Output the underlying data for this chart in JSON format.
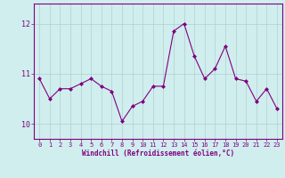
{
  "x": [
    0,
    1,
    2,
    3,
    4,
    5,
    6,
    7,
    8,
    9,
    10,
    11,
    12,
    13,
    14,
    15,
    16,
    17,
    18,
    19,
    20,
    21,
    22,
    23
  ],
  "y": [
    10.9,
    10.5,
    10.7,
    10.7,
    10.8,
    10.9,
    10.75,
    10.65,
    10.05,
    10.35,
    10.45,
    10.75,
    10.75,
    11.85,
    12.0,
    11.35,
    10.9,
    11.1,
    11.55,
    10.9,
    10.85,
    10.45,
    10.7,
    10.3
  ],
  "line_color": "#800080",
  "marker": "D",
  "marker_size": 2,
  "bg_color": "#d0eeee",
  "grid_color": "#b0d0d0",
  "xlabel": "Windchill (Refroidissement éolien,°C)",
  "xlabel_color": "#800080",
  "tick_color": "#800080",
  "spine_color": "#800080",
  "ylim": [
    9.7,
    12.4
  ],
  "xlim": [
    -0.5,
    23.5
  ],
  "yticks": [
    10,
    11,
    12
  ],
  "xticks": [
    0,
    1,
    2,
    3,
    4,
    5,
    6,
    7,
    8,
    9,
    10,
    11,
    12,
    13,
    14,
    15,
    16,
    17,
    18,
    19,
    20,
    21,
    22,
    23
  ],
  "figsize": [
    3.2,
    2.0
  ],
  "dpi": 100
}
